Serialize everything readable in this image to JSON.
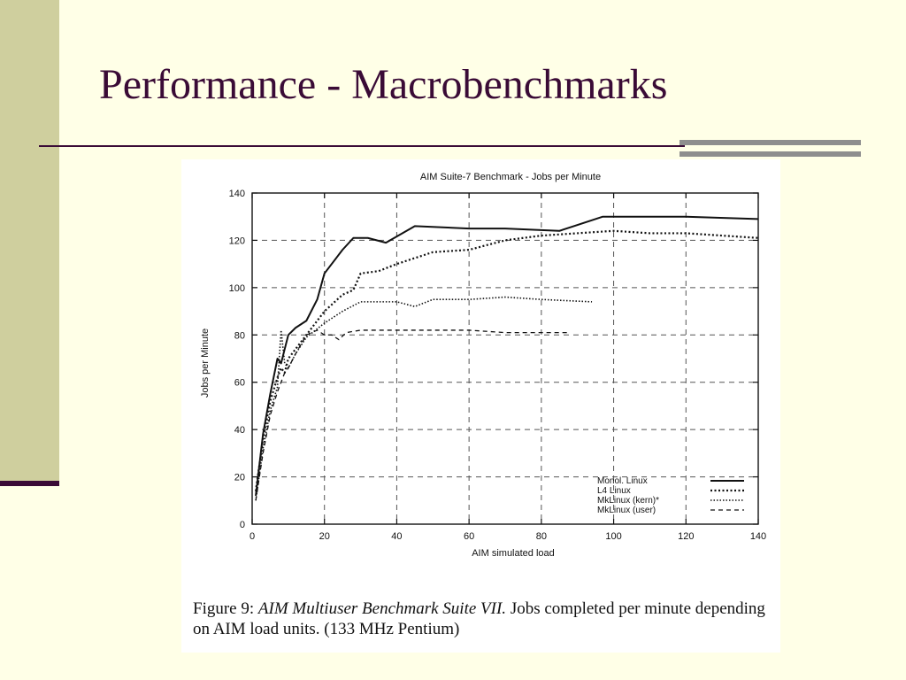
{
  "slide": {
    "title": "Performance - Macrobenchmarks"
  },
  "colors": {
    "background": "#FFFFE7",
    "title": "#3A0B36",
    "sidebar": "#CFCF9E",
    "accent_bars": "#8E8E8E"
  },
  "caption": {
    "label": "Figure 9:",
    "title": "AIM Multiuser Benchmark Suite VII.",
    "text": "Jobs completed per minute depending on AIM load units. (133 MHz Pentium)"
  },
  "chart_data": {
    "type": "line",
    "title": "AIM Suite-7 Benchmark - Jobs per Minute",
    "xlabel": "AIM simulated load",
    "ylabel": "Jobs per Minute",
    "xlim": [
      0,
      140
    ],
    "ylim": [
      0,
      140
    ],
    "xticks": [
      0,
      20,
      40,
      60,
      80,
      100,
      120,
      140
    ],
    "yticks": [
      0,
      20,
      40,
      60,
      80,
      100,
      120,
      140
    ],
    "grid": true,
    "legend_position": "bottom-right",
    "series": [
      {
        "name": "Monol. Linux",
        "style": "solid",
        "x": [
          1,
          3,
          5,
          7,
          8,
          9,
          10,
          12,
          15,
          18,
          20,
          25,
          28,
          32,
          37,
          45,
          60,
          70,
          85,
          97,
          110,
          120,
          140
        ],
        "y": [
          12,
          38,
          55,
          70,
          68,
          74,
          80,
          83,
          86,
          95,
          106,
          116,
          121,
          121,
          119,
          126,
          125,
          125,
          124,
          130,
          130,
          130,
          129
        ]
      },
      {
        "name": "L4 Linux",
        "style": "dotted",
        "x": [
          1,
          3,
          5,
          7,
          8,
          9,
          10,
          12,
          15,
          20,
          25,
          28,
          30,
          35,
          40,
          50,
          60,
          70,
          80,
          90,
          100,
          110,
          120,
          140
        ],
        "y": [
          14,
          36,
          52,
          62,
          66,
          64,
          70,
          74,
          80,
          90,
          97,
          99,
          106,
          107,
          110,
          115,
          116,
          120,
          122,
          123,
          124,
          123,
          123,
          121
        ]
      },
      {
        "name": "MkLinux (kern)*",
        "style": "dense-dotted",
        "x": [
          1,
          3,
          5,
          7,
          8,
          9,
          10,
          12,
          15,
          20,
          25,
          30,
          40,
          45,
          50,
          60,
          70,
          80,
          94
        ],
        "y": [
          10,
          32,
          48,
          58,
          82,
          68,
          66,
          72,
          79,
          85,
          90,
          94,
          94,
          92,
          95,
          95,
          96,
          95,
          94
        ]
      },
      {
        "name": "MkLinux (user)",
        "style": "dashed",
        "x": [
          1,
          3,
          5,
          7,
          8,
          9,
          10,
          12,
          15,
          18,
          20,
          22,
          24,
          26,
          30,
          40,
          50,
          60,
          70,
          88
        ],
        "y": [
          10,
          30,
          46,
          56,
          60,
          64,
          66,
          72,
          80,
          82,
          80,
          80,
          78,
          81,
          82,
          82,
          82,
          82,
          81,
          81
        ]
      }
    ]
  }
}
